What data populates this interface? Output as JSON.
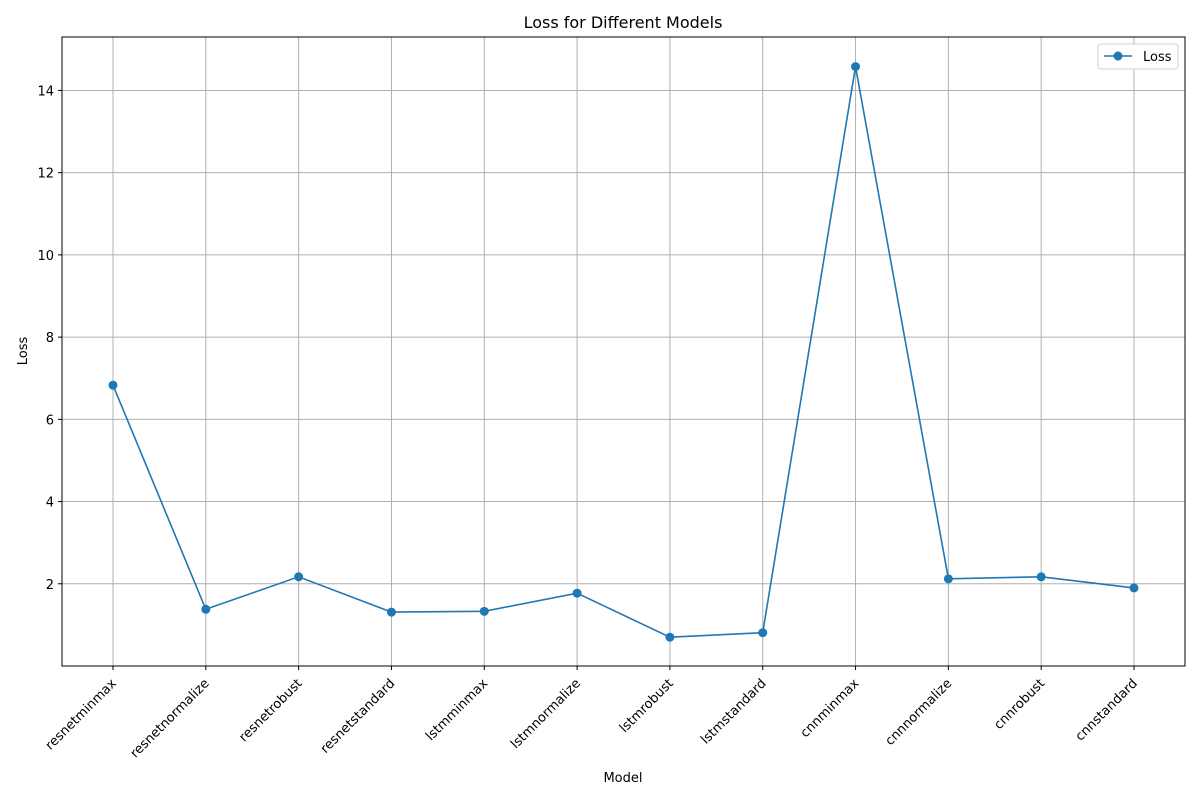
{
  "chart_data": {
    "type": "line",
    "title": "Loss for Different Models",
    "xlabel": "Model",
    "ylabel": "Loss",
    "categories": [
      "resnetminmax",
      "resnetnormalize",
      "resnetrobust",
      "resnetstandard",
      "lstmminmax",
      "lstmnormalize",
      "lstmrobust",
      "lstmstandard",
      "cnnminmax",
      "cnnnormalize",
      "cnnrobust",
      "cnnstandard"
    ],
    "series": [
      {
        "name": "Loss",
        "color": "#1f77b4",
        "values": [
          6.83,
          1.38,
          2.17,
          1.31,
          1.33,
          1.77,
          0.7,
          0.81,
          14.58,
          2.12,
          2.17,
          1.9
        ]
      }
    ],
    "ylim": [
      0.0,
      15.3
    ],
    "yticks": [
      2,
      4,
      6,
      8,
      10,
      12,
      14
    ],
    "grid": true,
    "legend": "top-right"
  }
}
